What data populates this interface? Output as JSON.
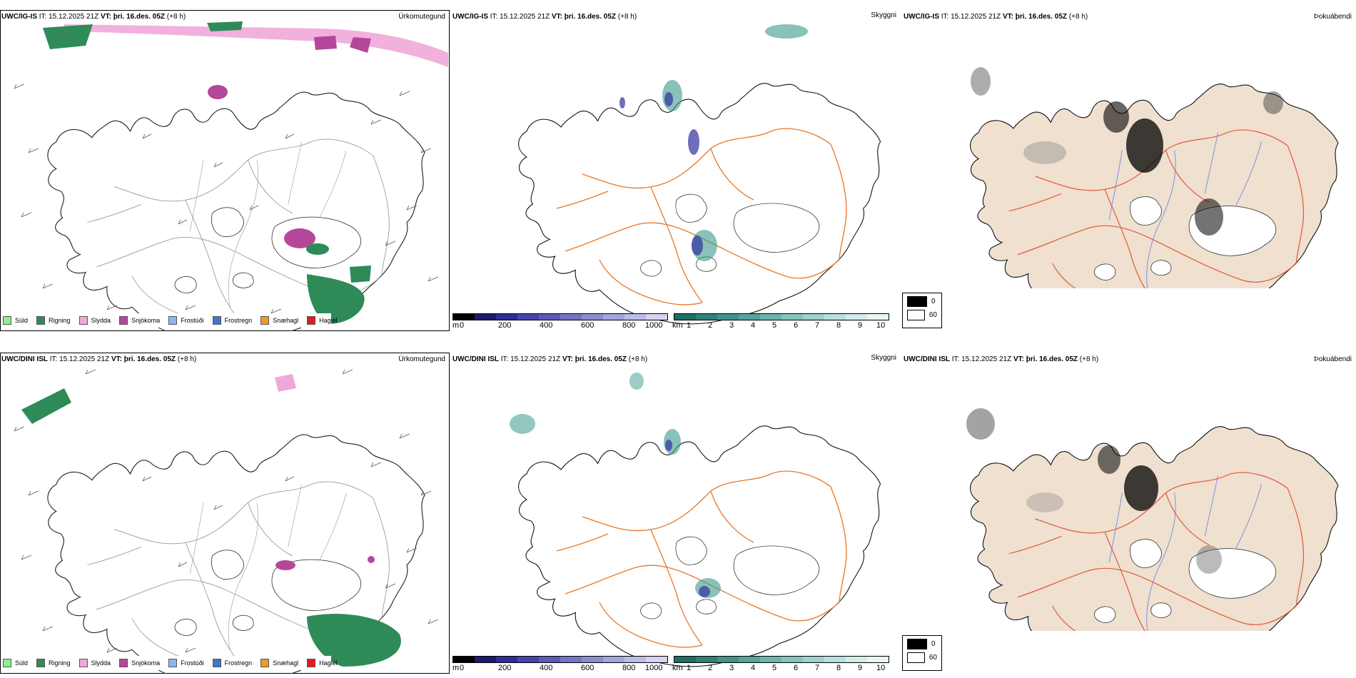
{
  "rows": [
    {
      "model": "UWC/IG-IS",
      "it_label": "IT:",
      "it_value": "15.12.2025 21Z",
      "vt_label": "VT:",
      "vt_value": "þri. 16.des. 05Z",
      "lead": "(+8 h)"
    },
    {
      "model": "UWC/DINI ISL",
      "it_label": "IT:",
      "it_value": "15.12.2025 21Z",
      "vt_label": "VT:",
      "vt_value": "þri. 16.des. 05Z",
      "lead": "(+8 h)"
    }
  ],
  "panel_titles": {
    "precip_type": "Úrkomutegund",
    "ceiling": "Skyggni",
    "fog": "Þokuábendi"
  },
  "precip_legend": [
    {
      "label": "Súld",
      "color": "#90ee90"
    },
    {
      "label": "Rigning",
      "color": "#2e8b57"
    },
    {
      "label": "Slydda",
      "color": "#f0a8d8"
    },
    {
      "label": "Snjókoma",
      "color": "#b5479a"
    },
    {
      "label": "Frostúði",
      "color": "#8ab8f0"
    },
    {
      "label": "Frostregn",
      "color": "#3a78c8"
    },
    {
      "label": "Snæhagl",
      "color": "#f09a28"
    },
    {
      "label": "Haglél",
      "color": "#e41a1c"
    }
  ],
  "ceiling_bar": {
    "unit": "m",
    "ticks": [
      "0",
      "200",
      "400",
      "600",
      "800",
      "1000"
    ],
    "colors": [
      "#000000",
      "#1a1a6e",
      "#2d2d96",
      "#4444aa",
      "#5a5ab8",
      "#7474c4",
      "#8c8cd0",
      "#a4a4dc",
      "#bcbce8",
      "#d4d4f0"
    ]
  },
  "vis_bar": {
    "unit": "km",
    "ticks": [
      "1",
      "2",
      "3",
      "4",
      "5",
      "6",
      "7",
      "8",
      "9",
      "10"
    ],
    "colors": [
      "#1e6e64",
      "#2f8078",
      "#42928a",
      "#56a49c",
      "#6cb4ad",
      "#84c4be",
      "#9ed2cc",
      "#b8e0dc",
      "#d2ece9",
      "#eaf6f4"
    ]
  },
  "fog_legend": [
    {
      "label": "0",
      "color": "#000000"
    },
    {
      "label": "60",
      "color": "#ffffff"
    }
  ],
  "colors": {
    "land_fog": "#efe0d0",
    "roads": "#e8782a",
    "fog_roads": "#e05a3a",
    "rivers": "#7b8fe0",
    "coast": "#111111",
    "ceiling_blue": "#3030a0",
    "vis_teal": "#3a9a8c",
    "rain_green": "#2e8b57",
    "sleet_pink": "#f0a8d8",
    "snow_purple": "#b5479a"
  }
}
